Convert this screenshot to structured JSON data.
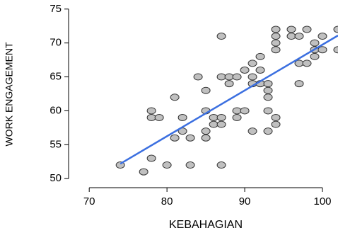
{
  "chart_data": {
    "type": "scatter",
    "x_label": "KEBAHAGIAN",
    "y_label": "WORK ENGAGEMENT",
    "x": [
      74,
      77,
      78,
      78,
      78,
      79,
      80,
      81,
      81,
      82,
      82,
      83,
      83,
      84,
      85,
      85,
      85,
      85,
      86,
      86,
      87,
      87,
      87,
      87,
      87,
      88,
      88,
      89,
      89,
      89,
      90,
      90,
      91,
      91,
      91,
      91,
      92,
      92,
      92,
      93,
      93,
      93,
      93,
      93,
      94,
      94,
      94,
      94,
      94,
      94,
      96,
      96,
      97,
      97,
      97,
      98,
      98,
      99,
      99,
      99,
      100,
      100,
      102,
      102
    ],
    "y": [
      52,
      51,
      53,
      60,
      59,
      59,
      52,
      62,
      56,
      59,
      57,
      56,
      52,
      65,
      63,
      60,
      57,
      56,
      59,
      58,
      71,
      65,
      59,
      58,
      52,
      65,
      64,
      65,
      60,
      59,
      66,
      60,
      67,
      65,
      64,
      57,
      68,
      66,
      64,
      64,
      63,
      62,
      60,
      57,
      72,
      71,
      70,
      69,
      59,
      58,
      72,
      71,
      71,
      67,
      64,
      72,
      67,
      70,
      69,
      68,
      71,
      69,
      72,
      69
    ],
    "color": "#c0c0c0",
    "trend_line": {
      "x": [
        74,
        102
      ],
      "y": [
        52.2,
        71.1
      ],
      "color": "#3b6fe0"
    },
    "xlim": [
      68.8,
      102
    ],
    "xticks": [
      70,
      80,
      90,
      100
    ],
    "ylim": [
      49.5,
      75.5
    ],
    "yticks": [
      50,
      55,
      60,
      65,
      70,
      75
    ]
  }
}
